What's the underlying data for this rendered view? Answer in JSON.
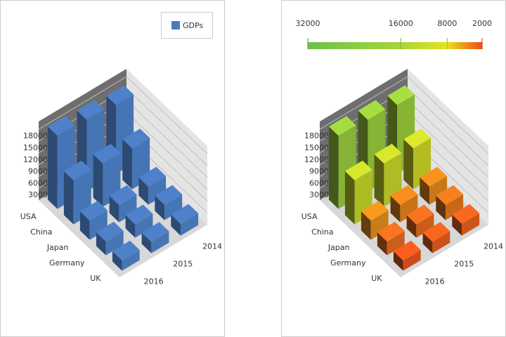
{
  "chart_data": [
    {
      "type": "bar",
      "categories": [
        "USA",
        "China",
        "Japan",
        "Germany",
        "UK"
      ],
      "depth_categories": [
        "2014",
        "2015",
        "2016"
      ],
      "series": [
        {
          "name": "GDPs",
          "color": "#4a7bbf",
          "values": [
            [
              17500,
              18200,
              18600
            ],
            [
              10400,
              11000,
              11200
            ],
            [
              4600,
              4400,
              4900
            ],
            [
              3900,
              3400,
              3500
            ],
            [
              3000,
              2900,
              2600
            ]
          ]
        }
      ],
      "ylim": [
        0,
        20000
      ],
      "yticks": [
        3000,
        6000,
        9000,
        12000,
        15000,
        18000
      ],
      "grid": true,
      "legend": "top-right"
    },
    {
      "type": "bar",
      "categories": [
        "USA",
        "China",
        "Japan",
        "Germany",
        "UK"
      ],
      "depth_categories": [
        "2014",
        "2015",
        "2016"
      ],
      "series": [
        {
          "values": [
            [
              17500,
              18200,
              18600
            ],
            [
              10400,
              11000,
              11200
            ],
            [
              4600,
              4400,
              4900
            ],
            [
              3900,
              3400,
              3500
            ],
            [
              3000,
              2900,
              2600
            ]
          ]
        }
      ],
      "colorscale": {
        "ticks": [
          32000,
          16000,
          8000,
          2000
        ],
        "colors": [
          "#6cc24a",
          "#a6d63c",
          "#e6e21e",
          "#f04a1c"
        ]
      },
      "ylim": [
        0,
        20000
      ],
      "yticks": [
        3000,
        6000,
        9000,
        12000,
        15000,
        18000
      ],
      "grid": true
    }
  ]
}
